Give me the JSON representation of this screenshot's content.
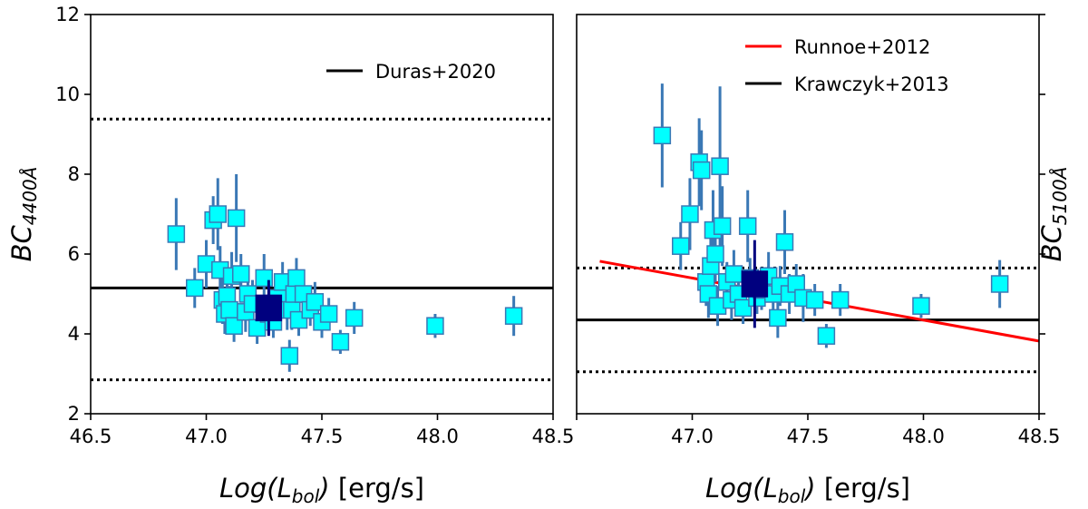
{
  "chart_data": [
    {
      "type": "scatter",
      "xlim": [
        46.5,
        48.5
      ],
      "ylim": [
        2,
        12
      ],
      "x_ticks": [
        "46.5",
        "47.0",
        "47.5",
        "48.0",
        "48.5"
      ],
      "y_ticks": [
        "2",
        "4",
        "6",
        "8",
        "10",
        "12"
      ],
      "xlabel": {
        "main": "Log(L",
        "sub": "bol",
        "close": ")",
        "unit": " [erg/s]"
      },
      "ylabel": {
        "main": "BC",
        "sub": "4400Å"
      },
      "legend_position": "top-right",
      "legend": [
        {
          "name": "Duras+2020",
          "color": "#000000"
        }
      ],
      "reference_lines": [
        {
          "name": "Duras+2020",
          "kind": "solid",
          "color": "#000000",
          "y": 5.15
        },
        {
          "kind": "dotted",
          "color": "#000000",
          "y": 9.38
        },
        {
          "kind": "dotted",
          "color": "#000000",
          "y": 2.85
        }
      ],
      "series": [
        {
          "marker_color": "#00ffff",
          "edge_color": "#3a78b5",
          "err_color": "#3a78b5",
          "points": [
            [
              46.87,
              6.5,
              0.9
            ],
            [
              46.95,
              5.15,
              0.5
            ],
            [
              47.0,
              5.75,
              0.6
            ],
            [
              47.03,
              6.85,
              0.6
            ],
            [
              47.05,
              7.0,
              0.9
            ],
            [
              47.06,
              5.6,
              0.6
            ],
            [
              47.07,
              4.85,
              0.6
            ],
            [
              47.08,
              4.5,
              0.5
            ],
            [
              47.09,
              4.95,
              0.7
            ],
            [
              47.1,
              4.6,
              0.6
            ],
            [
              47.11,
              5.45,
              0.6
            ],
            [
              47.12,
              4.2,
              0.4
            ],
            [
              47.13,
              6.9,
              1.1
            ],
            [
              47.15,
              5.5,
              0.5
            ],
            [
              47.17,
              4.55,
              0.5
            ],
            [
              47.18,
              5.0,
              0.5
            ],
            [
              47.2,
              4.75,
              0.6
            ],
            [
              47.22,
              4.15,
              0.4
            ],
            [
              47.25,
              5.4,
              0.6
            ],
            [
              47.27,
              4.5,
              0.5
            ],
            [
              47.29,
              4.3,
              0.4
            ],
            [
              47.31,
              4.9,
              0.5
            ],
            [
              47.33,
              5.3,
              0.5
            ],
            [
              47.35,
              4.6,
              0.5
            ],
            [
              47.36,
              3.45,
              0.4
            ],
            [
              47.37,
              4.6,
              0.5
            ],
            [
              47.38,
              5.0,
              0.5
            ],
            [
              47.39,
              5.4,
              0.5
            ],
            [
              47.4,
              4.35,
              0.4
            ],
            [
              47.42,
              5.0,
              0.5
            ],
            [
              47.45,
              4.6,
              0.4
            ],
            [
              47.47,
              4.8,
              0.5
            ],
            [
              47.5,
              4.3,
              0.4
            ],
            [
              47.53,
              4.5,
              0.4
            ],
            [
              47.58,
              3.8,
              0.3
            ],
            [
              47.64,
              4.4,
              0.4
            ],
            [
              47.99,
              4.2,
              0.3
            ],
            [
              48.33,
              4.45,
              0.5
            ]
          ]
        },
        {
          "marker_color": "#00007f",
          "edge_color": "#00007f",
          "err_color": "#00007f",
          "points": [
            [
              47.27,
              4.65,
              0.7
            ]
          ]
        }
      ]
    },
    {
      "type": "scatter",
      "xlim": [
        46.5,
        48.5
      ],
      "ylim": [
        2,
        12
      ],
      "x_ticks": [
        "",
        "47.0",
        "47.5",
        "48.0",
        "48.5"
      ],
      "xlabel": {
        "main": "Log(L",
        "sub": "bol",
        "close": ")",
        "unit": " [erg/s]"
      },
      "ylabel": {
        "main": "BC",
        "sub": "5100Å"
      },
      "legend_position": "top-right",
      "legend": [
        {
          "name": "Runnoe+2012",
          "color": "#ff0000"
        },
        {
          "name": "Krawczyk+2013",
          "color": "#000000"
        }
      ],
      "reference_lines": [
        {
          "name": "Krawczyk+2013",
          "kind": "solid",
          "color": "#000000",
          "y": 4.35
        },
        {
          "kind": "dotted",
          "color": "#000000",
          "y": 5.65
        },
        {
          "kind": "dotted",
          "color": "#000000",
          "y": 3.05
        },
        {
          "name": "Runnoe+2012",
          "kind": "line",
          "color": "#ff0000",
          "x": [
            46.6,
            48.5
          ],
          "y": [
            5.82,
            3.82
          ]
        }
      ],
      "series": [
        {
          "marker_color": "#00ffff",
          "edge_color": "#3a78b5",
          "err_color": "#3a78b5",
          "points": [
            [
              46.87,
              8.97,
              1.3
            ],
            [
              46.95,
              6.2,
              0.6
            ],
            [
              46.99,
              7.0,
              0.9
            ],
            [
              47.03,
              8.3,
              1.1
            ],
            [
              47.04,
              8.1,
              1.0
            ],
            [
              47.06,
              5.3,
              0.6
            ],
            [
              47.07,
              5.0,
              0.6
            ],
            [
              47.08,
              5.7,
              0.7
            ],
            [
              47.09,
              6.6,
              1.0
            ],
            [
              47.1,
              6.0,
              0.7
            ],
            [
              47.11,
              4.7,
              0.5
            ],
            [
              47.12,
              8.2,
              2.0
            ],
            [
              47.13,
              6.7,
              1.0
            ],
            [
              47.15,
              5.3,
              0.5
            ],
            [
              47.17,
              4.85,
              0.5
            ],
            [
              47.18,
              5.5,
              0.6
            ],
            [
              47.2,
              5.0,
              0.5
            ],
            [
              47.22,
              4.65,
              0.4
            ],
            [
              47.24,
              6.7,
              0.9
            ],
            [
              47.25,
              5.4,
              0.5
            ],
            [
              47.28,
              4.9,
              0.4
            ],
            [
              47.3,
              5.1,
              0.5
            ],
            [
              47.33,
              5.45,
              0.6
            ],
            [
              47.35,
              5.0,
              0.5
            ],
            [
              47.37,
              4.4,
              0.5
            ],
            [
              47.38,
              5.2,
              0.5
            ],
            [
              47.4,
              6.3,
              0.8
            ],
            [
              47.42,
              5.0,
              0.5
            ],
            [
              47.45,
              5.25,
              0.5
            ],
            [
              47.48,
              4.9,
              0.6
            ],
            [
              47.53,
              4.85,
              0.4
            ],
            [
              47.58,
              3.95,
              0.3
            ],
            [
              47.64,
              4.85,
              0.4
            ],
            [
              47.99,
              4.7,
              0.3
            ],
            [
              48.33,
              5.25,
              0.6
            ]
          ]
        },
        {
          "marker_color": "#00007f",
          "edge_color": "#00007f",
          "err_color": "#00007f",
          "points": [
            [
              47.27,
              5.25,
              1.1
            ]
          ]
        }
      ]
    }
  ]
}
